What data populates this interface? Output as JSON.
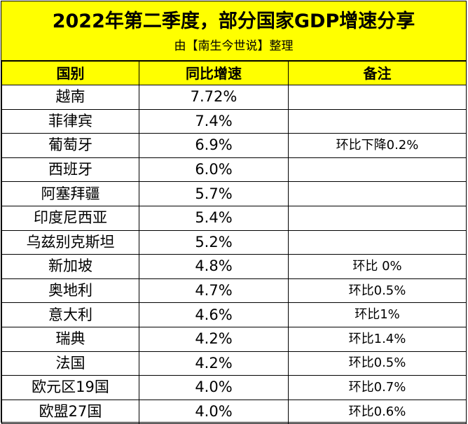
{
  "title": "2022年第二季度，部分国家GDP增速分享",
  "subtitle": "由【南生今世说】整理",
  "table": {
    "headers": [
      "国别",
      "同比增速",
      "备注"
    ],
    "rows": [
      {
        "country": "越南",
        "growth": "7.72%",
        "note": ""
      },
      {
        "country": "菲律宾",
        "growth": "7.4%",
        "note": ""
      },
      {
        "country": "葡萄牙",
        "growth": "6.9%",
        "note": "环比下降0.2%"
      },
      {
        "country": "西班牙",
        "growth": "6.0%",
        "note": ""
      },
      {
        "country": "阿塞拜疆",
        "growth": "5.7%",
        "note": ""
      },
      {
        "country": "印度尼西亚",
        "growth": "5.4%",
        "note": ""
      },
      {
        "country": "乌兹别克斯坦",
        "growth": "5.2%",
        "note": ""
      },
      {
        "country": "新加坡",
        "growth": "4.8%",
        "note": "环比 0%"
      },
      {
        "country": "奥地利",
        "growth": "4.7%",
        "note": "环比0.5%"
      },
      {
        "country": "意大利",
        "growth": "4.6%",
        "note": "环比1%"
      },
      {
        "country": "瑞典",
        "growth": "4.2%",
        "note": "环比1.4%"
      },
      {
        "country": "法国",
        "growth": "4.2%",
        "note": "环比0.5%"
      },
      {
        "country": "欧元区19国",
        "growth": "4.0%",
        "note": "环比0.7%"
      },
      {
        "country": "欧盟27国",
        "growth": "4.0%",
        "note": "环比0.6%"
      }
    ]
  }
}
